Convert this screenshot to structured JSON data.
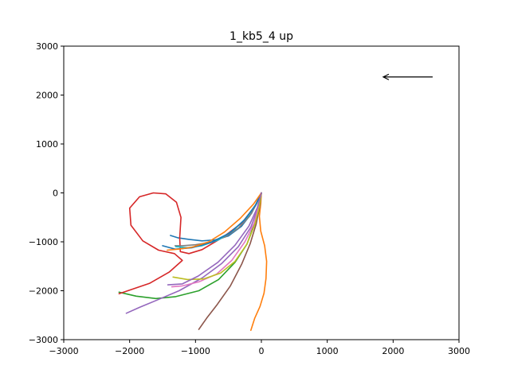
{
  "chart_data": {
    "type": "line",
    "title": "1_kb5_4 up",
    "xlim": [
      -3000,
      3000
    ],
    "ylim": [
      -3000,
      3000
    ],
    "xticks": [
      -3000,
      -2000,
      -1000,
      0,
      1000,
      2000,
      3000
    ],
    "yticks": [
      -3000,
      -2000,
      -1000,
      0,
      1000,
      2000,
      3000
    ],
    "xtick_labels": [
      "−3000",
      "−2000",
      "−1000",
      "0",
      "1000",
      "2000",
      "3000"
    ],
    "ytick_labels": [
      "−3000",
      "−2000",
      "−1000",
      "0",
      "1000",
      "2000",
      "3000"
    ],
    "grid": false,
    "arrow": {
      "from": [
        2600,
        2370
      ],
      "to": [
        1850,
        2370
      ],
      "color": "#000000"
    },
    "series": [
      {
        "color": "#1f77b4",
        "points": [
          [
            0,
            0
          ],
          [
            -60,
            -170
          ],
          [
            -150,
            -420
          ],
          [
            -300,
            -680
          ],
          [
            -500,
            -880
          ],
          [
            -700,
            -960
          ],
          [
            -900,
            -980
          ],
          [
            -1100,
            -950
          ],
          [
            -1260,
            -920
          ],
          [
            -1380,
            -870
          ]
        ]
      },
      {
        "color": "#ff7f0e",
        "points": [
          [
            0,
            0
          ],
          [
            -10,
            -220
          ],
          [
            -30,
            -480
          ],
          [
            -10,
            -780
          ],
          [
            50,
            -1080
          ],
          [
            80,
            -1400
          ],
          [
            70,
            -1750
          ],
          [
            40,
            -2050
          ],
          [
            -20,
            -2320
          ],
          [
            -100,
            -2560
          ],
          [
            -160,
            -2810
          ]
        ]
      },
      {
        "color": "#2ca02c",
        "points": [
          [
            0,
            0
          ],
          [
            -40,
            -280
          ],
          [
            -110,
            -650
          ],
          [
            -220,
            -1050
          ],
          [
            -400,
            -1420
          ],
          [
            -650,
            -1770
          ],
          [
            -950,
            -2000
          ],
          [
            -1300,
            -2120
          ],
          [
            -1600,
            -2160
          ],
          [
            -1900,
            -2110
          ],
          [
            -2160,
            -2030
          ]
        ]
      },
      {
        "color": "#d62728",
        "points": [
          [
            0,
            0
          ],
          [
            -100,
            -280
          ],
          [
            -300,
            -620
          ],
          [
            -600,
            -920
          ],
          [
            -900,
            -1160
          ],
          [
            -1100,
            -1240
          ],
          [
            -1230,
            -1200
          ],
          [
            -1240,
            -920
          ],
          [
            -1220,
            -500
          ],
          [
            -1290,
            -190
          ],
          [
            -1450,
            -20
          ],
          [
            -1640,
            0
          ],
          [
            -1850,
            -80
          ],
          [
            -2000,
            -310
          ],
          [
            -1980,
            -660
          ],
          [
            -1800,
            -980
          ],
          [
            -1560,
            -1170
          ],
          [
            -1320,
            -1240
          ],
          [
            -1200,
            -1380
          ],
          [
            -1400,
            -1620
          ],
          [
            -1700,
            -1850
          ],
          [
            -2160,
            -2060
          ]
        ]
      },
      {
        "color": "#9467bd",
        "points": [
          [
            0,
            0
          ],
          [
            -50,
            -300
          ],
          [
            -160,
            -700
          ],
          [
            -350,
            -1100
          ],
          [
            -600,
            -1440
          ],
          [
            -900,
            -1740
          ],
          [
            -1250,
            -2000
          ],
          [
            -1600,
            -2200
          ],
          [
            -1850,
            -2340
          ],
          [
            -2050,
            -2460
          ]
        ]
      },
      {
        "color": "#8c564b",
        "points": [
          [
            0,
            0
          ],
          [
            -20,
            -250
          ],
          [
            -80,
            -640
          ],
          [
            -170,
            -1040
          ],
          [
            -300,
            -1460
          ],
          [
            -470,
            -1900
          ],
          [
            -680,
            -2300
          ],
          [
            -830,
            -2560
          ],
          [
            -950,
            -2790
          ]
        ]
      },
      {
        "color": "#e377c2",
        "points": [
          [
            0,
            0
          ],
          [
            -40,
            -260
          ],
          [
            -110,
            -620
          ],
          [
            -250,
            -1000
          ],
          [
            -450,
            -1380
          ],
          [
            -680,
            -1660
          ],
          [
            -950,
            -1820
          ],
          [
            -1200,
            -1900
          ],
          [
            -1360,
            -1920
          ]
        ]
      },
      {
        "color": "#7f7f7f",
        "points": [
          [
            0,
            0
          ],
          [
            -70,
            -220
          ],
          [
            -180,
            -480
          ],
          [
            -350,
            -720
          ],
          [
            -550,
            -900
          ],
          [
            -780,
            -1010
          ],
          [
            -1000,
            -1060
          ],
          [
            -1200,
            -1080
          ],
          [
            -1310,
            -1080
          ]
        ]
      },
      {
        "color": "#bcbd22",
        "points": [
          [
            0,
            0
          ],
          [
            -30,
            -280
          ],
          [
            -100,
            -650
          ],
          [
            -220,
            -1050
          ],
          [
            -400,
            -1400
          ],
          [
            -620,
            -1640
          ],
          [
            -880,
            -1760
          ],
          [
            -1120,
            -1770
          ],
          [
            -1340,
            -1720
          ]
        ]
      },
      {
        "color": "#17becf",
        "points": [
          [
            0,
            0
          ],
          [
            -80,
            -230
          ],
          [
            -220,
            -500
          ],
          [
            -420,
            -760
          ],
          [
            -650,
            -960
          ],
          [
            -900,
            -1080
          ],
          [
            -1120,
            -1120
          ],
          [
            -1300,
            -1100
          ]
        ]
      },
      {
        "color": "#1f77b4",
        "points": [
          [
            0,
            0
          ],
          [
            -90,
            -250
          ],
          [
            -260,
            -560
          ],
          [
            -480,
            -820
          ],
          [
            -760,
            -1010
          ],
          [
            -1050,
            -1120
          ],
          [
            -1310,
            -1150
          ],
          [
            -1500,
            -1080
          ]
        ]
      },
      {
        "color": "#ff7f0e",
        "points": [
          [
            0,
            0
          ],
          [
            -120,
            -230
          ],
          [
            -320,
            -520
          ],
          [
            -560,
            -800
          ],
          [
            -800,
            -1000
          ],
          [
            -1050,
            -1110
          ],
          [
            -1260,
            -1150
          ],
          [
            -1430,
            -1170
          ]
        ]
      },
      {
        "color": "#9467bd",
        "points": [
          [
            0,
            0
          ],
          [
            -60,
            -300
          ],
          [
            -190,
            -680
          ],
          [
            -400,
            -1070
          ],
          [
            -660,
            -1420
          ],
          [
            -960,
            -1700
          ],
          [
            -1200,
            -1860
          ],
          [
            -1420,
            -1880
          ]
        ]
      }
    ]
  }
}
